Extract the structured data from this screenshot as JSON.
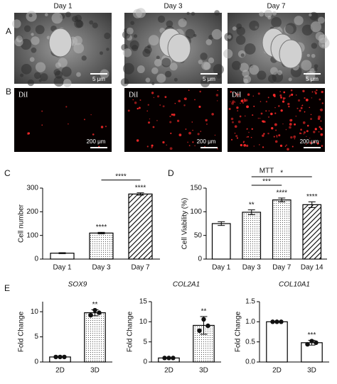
{
  "panel_labels": [
    "A",
    "B",
    "C",
    "D",
    "E"
  ],
  "image_grid": {
    "columns": [
      "Day 1",
      "Day 3",
      "Day 7"
    ],
    "sem_scale": [
      "5 μm",
      "5 μm",
      "5 μm"
    ],
    "fluor_label": [
      "DiI",
      "DiI",
      "DiI"
    ],
    "fluor_scale": [
      "200 μm",
      "200 μm",
      "200 μm"
    ]
  },
  "chart_data": [
    {
      "type": "bar",
      "ylabel": "Cell number",
      "categories": [
        "Day 1",
        "Day 3",
        "Day 7"
      ],
      "values": [
        25,
        110,
        275
      ],
      "errors": [
        2,
        3,
        5
      ],
      "patterns": [
        "white",
        "dots",
        "hatch"
      ],
      "ylim": [
        0,
        300
      ],
      "yticks": [
        0,
        100,
        200,
        300
      ],
      "stars": [
        null,
        "****",
        "****"
      ],
      "comparisons": [
        {
          "from": "Day 3",
          "to": "Day 7",
          "label": "****"
        }
      ]
    },
    {
      "type": "bar",
      "title": "MTT",
      "ylabel": "Cell Viability (%)",
      "categories": [
        "Day 1",
        "Day 3",
        "Day 7",
        "Day 14"
      ],
      "values": [
        75,
        99,
        125,
        115
      ],
      "errors": [
        4,
        5,
        4,
        6
      ],
      "patterns": [
        "white",
        "dots",
        "dots",
        "hatch"
      ],
      "ylim": [
        0,
        150
      ],
      "yticks": [
        0,
        50,
        100,
        150
      ],
      "stars": [
        null,
        "**",
        "****",
        "****"
      ],
      "comparisons": [
        {
          "from": "Day 3",
          "to": "Day 7",
          "label": "***"
        },
        {
          "from": "Day 3",
          "to": "Day 14",
          "label": "*"
        }
      ]
    },
    {
      "type": "bar",
      "title": "SOX9",
      "ylabel": "Fold Change",
      "categories": [
        "2D",
        "3D"
      ],
      "values": [
        1,
        9.8
      ],
      "errors": [
        0.05,
        0.6
      ],
      "patterns": [
        "white",
        "dots"
      ],
      "points": [
        [
          1,
          1,
          1
        ],
        [
          9.3,
          10.3,
          9.8
        ]
      ],
      "ylim": [
        0,
        12
      ],
      "yticks": [
        0,
        5,
        10
      ],
      "stars": [
        null,
        "**"
      ]
    },
    {
      "type": "bar",
      "title": "COL2A1",
      "ylabel": "Fold Change",
      "categories": [
        "2D",
        "3D"
      ],
      "values": [
        1,
        9.1
      ],
      "errors": [
        0.05,
        2.2
      ],
      "patterns": [
        "white",
        "dots"
      ],
      "points": [
        [
          1,
          1,
          1
        ],
        [
          7.8,
          10.6,
          9.0
        ]
      ],
      "ylim": [
        0,
        15
      ],
      "yticks": [
        0,
        5,
        10,
        15
      ],
      "stars": [
        null,
        "**"
      ]
    },
    {
      "type": "bar",
      "title": "COL10A1",
      "ylabel": "Fold Change",
      "categories": [
        "2D",
        "3D"
      ],
      "values": [
        1.0,
        0.48
      ],
      "errors": [
        0.01,
        0.06
      ],
      "patterns": [
        "white",
        "white"
      ],
      "points": [
        [
          1,
          1,
          1
        ],
        [
          0.44,
          0.52,
          0.48
        ]
      ],
      "ylim": [
        0,
        1.5
      ],
      "yticks": [
        {
          "value": 0,
          "label": "0.0"
        },
        0.5,
        {
          "value": 1,
          "label": "1.0"
        },
        1.5
      ],
      "stars": [
        null,
        "***"
      ]
    }
  ]
}
